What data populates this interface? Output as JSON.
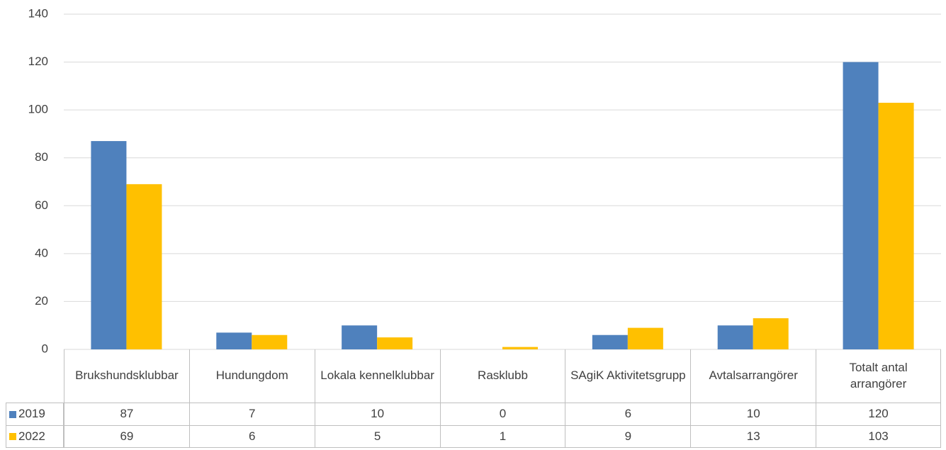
{
  "chart_data": {
    "type": "bar",
    "categories": [
      "Brukshundsklubbar",
      "Hundungdom",
      "Lokala kennelklubbar",
      "Rasklubb",
      "SAgiK Aktivitetsgrupp",
      "Avtalsarrangörer",
      "Totalt antal arrangörer"
    ],
    "series": [
      {
        "name": "2019",
        "color": "#4f81bd",
        "values": [
          87,
          7,
          10,
          0,
          6,
          10,
          120
        ]
      },
      {
        "name": "2022",
        "color": "#ffc000",
        "values": [
          69,
          6,
          5,
          1,
          9,
          13,
          103
        ]
      }
    ],
    "ylim": [
      0,
      140
    ],
    "yticks": [
      0,
      20,
      40,
      60,
      80,
      100,
      120,
      140
    ],
    "grid": true,
    "data_table": true
  }
}
